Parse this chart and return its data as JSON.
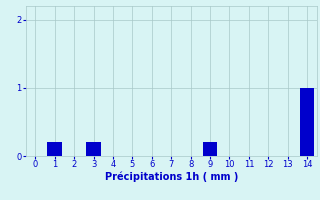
{
  "hours": [
    0,
    1,
    2,
    3,
    4,
    5,
    6,
    7,
    8,
    9,
    10,
    11,
    12,
    13,
    14
  ],
  "values": [
    0,
    0.2,
    0,
    0.2,
    0,
    0,
    0,
    0,
    0,
    0.2,
    0,
    0,
    0,
    0,
    1.0
  ],
  "bar_color": "#0000cc",
  "background_color": "#d8f4f4",
  "grid_color": "#a8c8c8",
  "xlabel": "Précipitations 1h ( mm )",
  "xlabel_color": "#0000cc",
  "tick_color": "#0000cc",
  "ylim": [
    0,
    2.2
  ],
  "yticks": [
    0,
    1,
    2
  ],
  "xlim": [
    -0.5,
    14.5
  ],
  "bar_width": 0.75,
  "tick_labelsize": 6,
  "xlabel_fontsize": 7
}
